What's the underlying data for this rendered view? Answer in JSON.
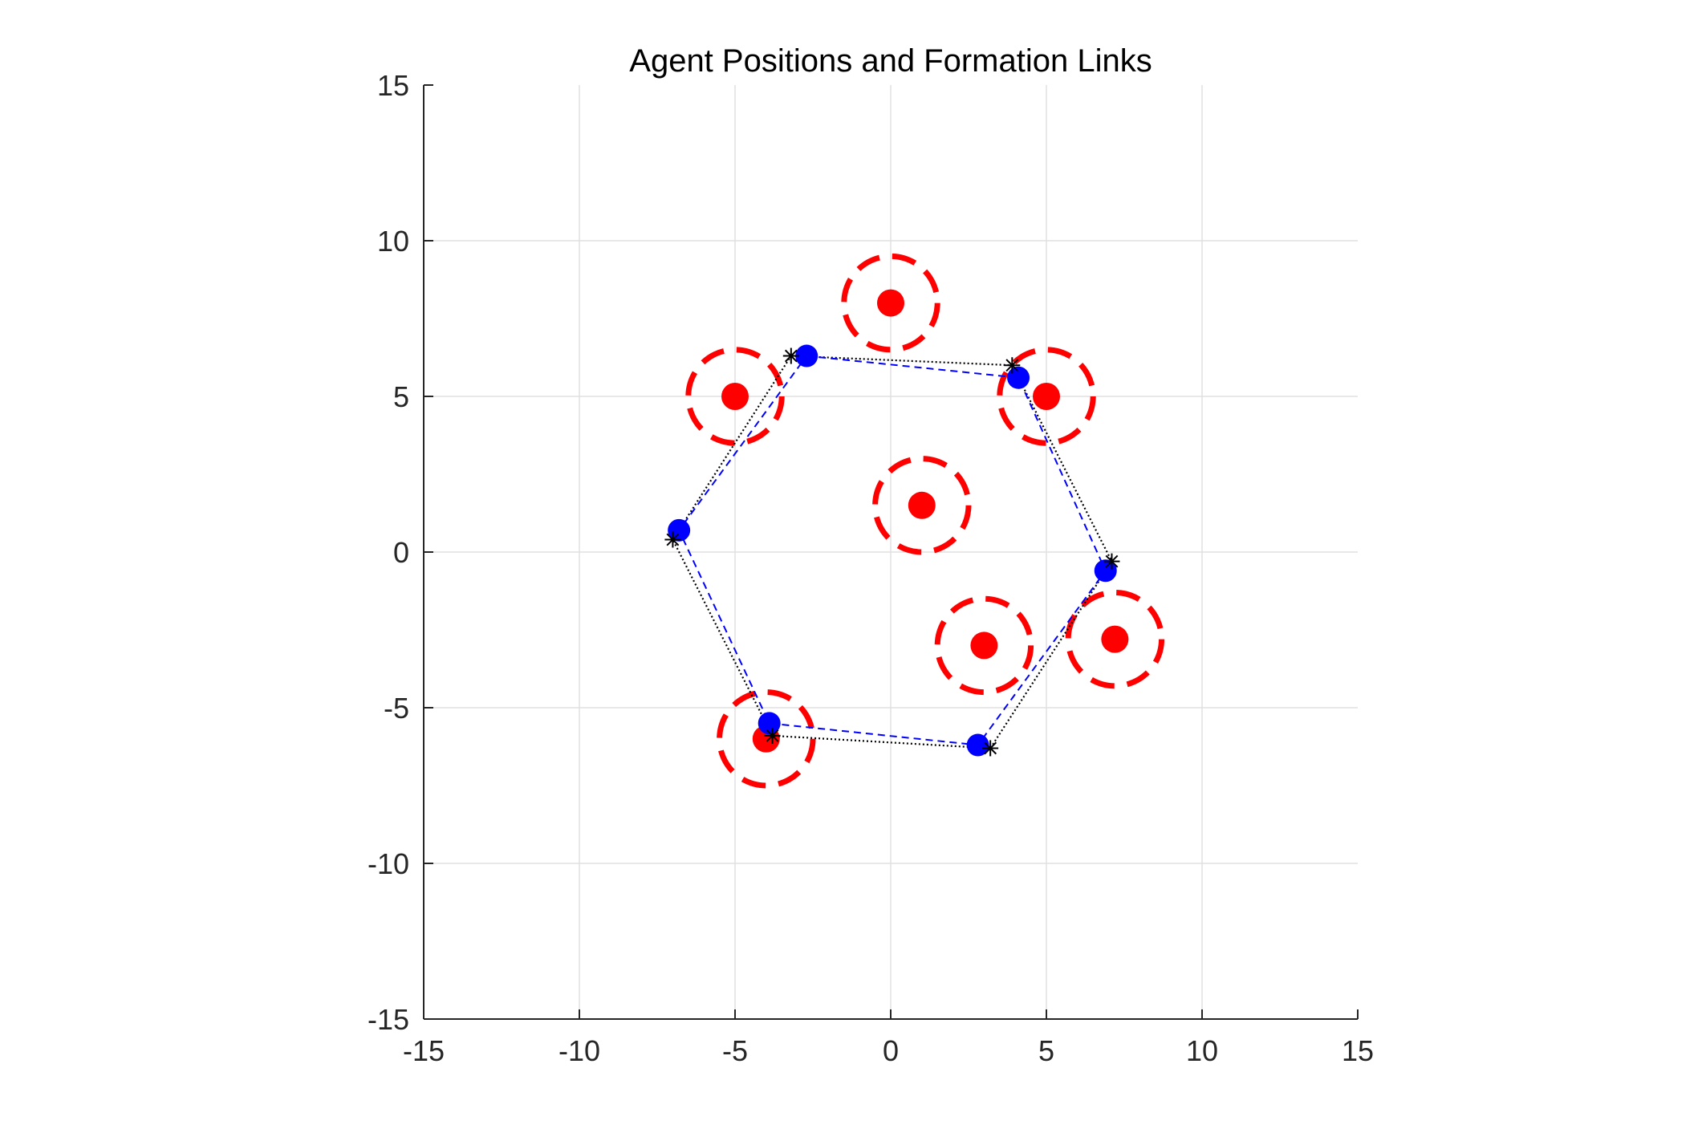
{
  "chart_data": {
    "type": "scatter",
    "title": "Agent Positions and Formation Links",
    "xlabel": "",
    "ylabel": "",
    "xlim": [
      -15,
      15
    ],
    "ylim": [
      -15,
      15
    ],
    "xticks": [
      -15,
      -10,
      -5,
      0,
      5,
      10,
      15
    ],
    "yticks": [
      -15,
      -10,
      -5,
      0,
      5,
      10,
      15
    ],
    "xtick_labels": [
      "-15",
      "-10",
      "-5",
      "0",
      "5",
      "10",
      "15"
    ],
    "ytick_labels": [
      "-15",
      "-10",
      "-5",
      "0",
      "5",
      "10",
      "15"
    ],
    "grid": true,
    "legend": "none",
    "obstacle_radius": 1.5,
    "obstacles": [
      {
        "x": 0,
        "y": 8
      },
      {
        "x": -5,
        "y": 5
      },
      {
        "x": 5,
        "y": 5
      },
      {
        "x": 1,
        "y": 1.5
      },
      {
        "x": 3,
        "y": -3
      },
      {
        "x": 7.2,
        "y": -2.8
      },
      {
        "x": -4,
        "y": -6
      }
    ],
    "agents": [
      {
        "x": -2.7,
        "y": 6.3
      },
      {
        "x": 4.1,
        "y": 5.6
      },
      {
        "x": 6.9,
        "y": -0.6
      },
      {
        "x": 2.8,
        "y": -6.2
      },
      {
        "x": -3.9,
        "y": -5.5
      },
      {
        "x": -6.8,
        "y": 0.7
      }
    ],
    "targets": [
      {
        "x": -3.2,
        "y": 6.3
      },
      {
        "x": 3.9,
        "y": 6.0
      },
      {
        "x": 7.1,
        "y": -0.3
      },
      {
        "x": 3.2,
        "y": -6.3
      },
      {
        "x": -3.8,
        "y": -5.9
      },
      {
        "x": -7.0,
        "y": 0.4
      }
    ],
    "colors": {
      "obstacle": "#ff0000",
      "agent": "#0000ff",
      "agent_link": "#0000ff",
      "target": "#000000",
      "target_link": "#000000",
      "grid": "#e0e0e0",
      "axis": "#262626"
    }
  }
}
